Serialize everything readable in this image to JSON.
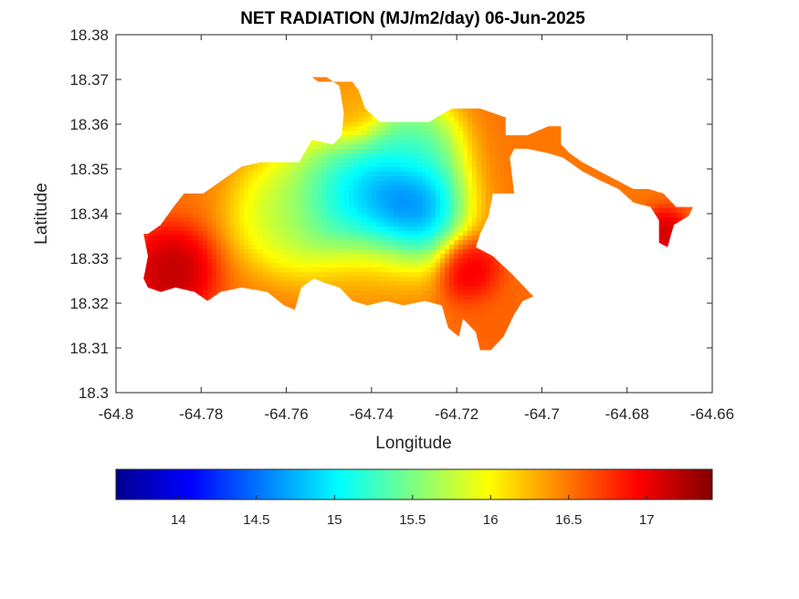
{
  "chart_data": {
    "type": "heatmap",
    "title": "NET RADIATION (MJ/m2/day) 06-Jun-2025",
    "xlabel": "Longitude",
    "ylabel": "Latitude",
    "xlim": [
      -64.8,
      -64.66
    ],
    "ylim": [
      18.3,
      18.38
    ],
    "xticks": [
      -64.8,
      -64.78,
      -64.76,
      -64.74,
      -64.72,
      -64.7,
      -64.68,
      -64.66
    ],
    "xtick_labels": [
      "-64.8",
      "-64.78",
      "-64.76",
      "-64.74",
      "-64.72",
      "-64.7",
      "-64.68",
      "-64.66"
    ],
    "yticks": [
      18.3,
      18.31,
      18.32,
      18.33,
      18.34,
      18.35,
      18.36,
      18.37,
      18.38
    ],
    "ytick_labels": [
      "18.3",
      "18.31",
      "18.32",
      "18.33",
      "18.34",
      "18.35",
      "18.36",
      "18.37",
      "18.38"
    ],
    "colormap": "jet",
    "colorbar": {
      "location": "south",
      "range": [
        13.6,
        17.42
      ],
      "ticks": [
        14,
        14.5,
        15,
        15.5,
        16,
        16.5,
        17
      ],
      "tick_labels": [
        "14",
        "14.5",
        "15",
        "15.5",
        "16",
        "16.5",
        "17"
      ]
    },
    "island_outline": [
      [
        -64.7925,
        18.3355
      ],
      [
        -64.7895,
        18.3375
      ],
      [
        -64.7865,
        18.3415
      ],
      [
        -64.784,
        18.3445
      ],
      [
        -64.7795,
        18.3445
      ],
      [
        -64.7735,
        18.3485
      ],
      [
        -64.7705,
        18.3505
      ],
      [
        -64.766,
        18.3515
      ],
      [
        -64.7605,
        18.3515
      ],
      [
        -64.757,
        18.3515
      ],
      [
        -64.754,
        18.3565
      ],
      [
        -64.749,
        18.3555
      ],
      [
        -64.747,
        18.3575
      ],
      [
        -64.7465,
        18.3625
      ],
      [
        -64.7475,
        18.3685
      ],
      [
        -64.7505,
        18.3705
      ],
      [
        -64.754,
        18.3705
      ],
      [
        -64.7525,
        18.3695
      ],
      [
        -64.7445,
        18.3695
      ],
      [
        -64.743,
        18.3675
      ],
      [
        -64.7415,
        18.3635
      ],
      [
        -64.738,
        18.3605
      ],
      [
        -64.732,
        18.3605
      ],
      [
        -64.7265,
        18.3605
      ],
      [
        -64.723,
        18.3625
      ],
      [
        -64.721,
        18.3635
      ],
      [
        -64.7185,
        18.3635
      ],
      [
        -64.7145,
        18.3635
      ],
      [
        -64.7085,
        18.3615
      ],
      [
        -64.7085,
        18.3575
      ],
      [
        -64.7035,
        18.3575
      ],
      [
        -64.6985,
        18.3595
      ],
      [
        -64.6955,
        18.3595
      ],
      [
        -64.6955,
        18.3555
      ],
      [
        -64.6935,
        18.3535
      ],
      [
        -64.6905,
        18.3515
      ],
      [
        -64.6865,
        18.3495
      ],
      [
        -64.6825,
        18.3475
      ],
      [
        -64.6785,
        18.3455
      ],
      [
        -64.675,
        18.3455
      ],
      [
        -64.6715,
        18.3445
      ],
      [
        -64.6685,
        18.3415
      ],
      [
        -64.6645,
        18.3415
      ],
      [
        -64.6655,
        18.3395
      ],
      [
        -64.669,
        18.3375
      ],
      [
        -64.6705,
        18.3325
      ],
      [
        -64.6725,
        18.3335
      ],
      [
        -64.6725,
        18.3385
      ],
      [
        -64.6745,
        18.3415
      ],
      [
        -64.6785,
        18.3425
      ],
      [
        -64.682,
        18.3455
      ],
      [
        -64.6865,
        18.3475
      ],
      [
        -64.6905,
        18.3495
      ],
      [
        -64.695,
        18.3525
      ],
      [
        -64.6985,
        18.3535
      ],
      [
        -64.7035,
        18.3545
      ],
      [
        -64.7065,
        18.3545
      ],
      [
        -64.7075,
        18.3525
      ],
      [
        -64.7065,
        18.3445
      ],
      [
        -64.7115,
        18.3445
      ],
      [
        -64.7125,
        18.3395
      ],
      [
        -64.7145,
        18.3355
      ],
      [
        -64.7155,
        18.3325
      ],
      [
        -64.7115,
        18.3305
      ],
      [
        -64.707,
        18.3265
      ],
      [
        -64.704,
        18.3235
      ],
      [
        -64.702,
        18.3215
      ],
      [
        -64.7045,
        18.3205
      ],
      [
        -64.7065,
        18.3175
      ],
      [
        -64.709,
        18.3125
      ],
      [
        -64.712,
        18.3095
      ],
      [
        -64.7145,
        18.3095
      ],
      [
        -64.7155,
        18.3135
      ],
      [
        -64.7185,
        18.3165
      ],
      [
        -64.7195,
        18.3125
      ],
      [
        -64.722,
        18.3145
      ],
      [
        -64.7235,
        18.3195
      ],
      [
        -64.7275,
        18.3205
      ],
      [
        -64.7325,
        18.3195
      ],
      [
        -64.7365,
        18.3205
      ],
      [
        -64.741,
        18.3195
      ],
      [
        -64.7445,
        18.3205
      ],
      [
        -64.7475,
        18.3235
      ],
      [
        -64.751,
        18.3245
      ],
      [
        -64.7535,
        18.3255
      ],
      [
        -64.7565,
        18.3235
      ],
      [
        -64.758,
        18.3185
      ],
      [
        -64.7605,
        18.3195
      ],
      [
        -64.7645,
        18.3225
      ],
      [
        -64.7705,
        18.3235
      ],
      [
        -64.7755,
        18.3225
      ],
      [
        -64.7785,
        18.3205
      ],
      [
        -64.7815,
        18.3225
      ],
      [
        -64.786,
        18.3235
      ],
      [
        -64.7895,
        18.3225
      ],
      [
        -64.7925,
        18.3235
      ],
      [
        -64.7935,
        18.3255
      ],
      [
        -64.7925,
        18.3305
      ],
      [
        -64.7935,
        18.3355
      ]
    ],
    "field_centers": [
      {
        "lon": -64.733,
        "lat": 18.3415,
        "value": 13.8,
        "spread": 0.0075
      },
      {
        "lon": -64.746,
        "lat": 18.342,
        "value": 14.6,
        "spread": 0.008
      },
      {
        "lon": -64.7305,
        "lat": 18.355,
        "value": 15.1,
        "spread": 0.006
      },
      {
        "lon": -64.76,
        "lat": 18.34,
        "value": 15.6,
        "spread": 0.007
      },
      {
        "lon": -64.787,
        "lat": 18.327,
        "value": 17.4,
        "spread": 0.0055
      },
      {
        "lon": -64.717,
        "lat": 18.327,
        "value": 17.2,
        "spread": 0.004
      },
      {
        "lon": -64.671,
        "lat": 18.3355,
        "value": 17.3,
        "spread": 0.003
      },
      {
        "lon": -64.74,
        "lat": 18.326,
        "value": 16.4,
        "spread": 0.008
      },
      {
        "lon": -64.71,
        "lat": 18.315,
        "value": 16.6,
        "spread": 0.006
      },
      {
        "lon": -64.744,
        "lat": 18.3645,
        "value": 16.3,
        "spread": 0.004
      }
    ]
  }
}
